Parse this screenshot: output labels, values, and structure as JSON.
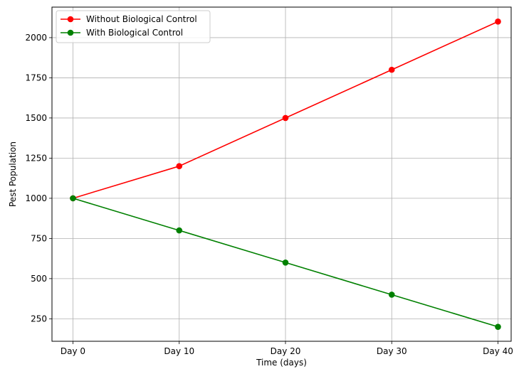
{
  "chart_data": {
    "type": "line",
    "title": "",
    "xlabel": "Time (days)",
    "ylabel": "Pest Population",
    "categories": [
      "Day 0",
      "Day 10",
      "Day 20",
      "Day 30",
      "Day 40"
    ],
    "yticks": [
      250,
      500,
      750,
      1000,
      1250,
      1500,
      1750,
      2000
    ],
    "ylim": [
      110,
      2190
    ],
    "grid": true,
    "legend_position": "upper-left",
    "series": [
      {
        "name": "Without Biological Control",
        "color": "#ff0000",
        "marker": "circle",
        "values": [
          1000,
          1200,
          1500,
          1800,
          2100
        ]
      },
      {
        "name": "With Biological Control",
        "color": "#008000",
        "marker": "circle",
        "values": [
          1000,
          800,
          600,
          400,
          200
        ]
      }
    ]
  }
}
